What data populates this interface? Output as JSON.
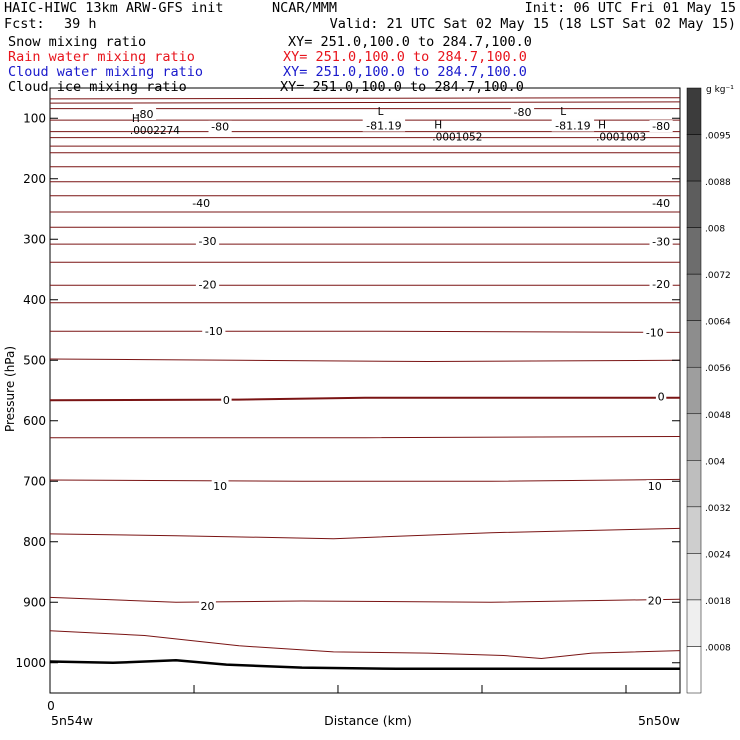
{
  "header": {
    "model": "HAIC-HIWC 13km ARW-GFS init",
    "center": "NCAR/MMM",
    "init": "Init: 06 UTC Fri 01 May 15",
    "fcst_label": "Fcst:",
    "fcst_value": "39 h",
    "valid": "Valid: 21 UTC Sat 02 May 15 (18 LST Sat 02 May 15)"
  },
  "fields": [
    {
      "label": "Snow mixing ratio",
      "xy": "XY= 251.0,100.0 to 284.7,100.0",
      "color": "#000000"
    },
    {
      "label": "Rain water mixing ratio",
      "xy": "XY= 251.0,100.0 to 284.7,100.0",
      "color": "#e8141c"
    },
    {
      "label": "Cloud water mixing ratio",
      "xy": "XY= 251.0,100.0 to 284.7,100.0",
      "color": "#1a1acc"
    },
    {
      "label": "Cloud ice mixing ratio",
      "xy": "XY= 251.0,100.0 to 284.7,100.0",
      "color": "#000000"
    }
  ],
  "colorbar": {
    "unit": "g kg⁻¹",
    "labels": [
      ".0095",
      ".0088",
      ".008",
      ".0072",
      ".0064",
      ".0056",
      ".0048",
      ".004",
      ".0032",
      ".0024",
      ".0018",
      ".0008"
    ]
  },
  "chart_data": {
    "type": "line",
    "title": "",
    "xlabel": "Distance (km)",
    "ylabel": "Pressure (hPa)",
    "x_start_label": "0",
    "x_left_label": "5n54w",
    "x_right_label": "5n50w",
    "ylim": [
      1050,
      50
    ],
    "yticks": [
      100,
      200,
      300,
      400,
      500,
      600,
      700,
      800,
      900,
      1000
    ],
    "temperature_contour_color": "#7a1414",
    "contour_line_labels": [
      {
        "label": "-80",
        "x": 0.15,
        "p": 93
      },
      {
        "label": "-80",
        "x": 0.27,
        "p": 114
      },
      {
        "label": "-80",
        "x": 0.75,
        "p": 90
      },
      {
        "label": "-81.19",
        "x": 0.53,
        "p": 112
      },
      {
        "label": "-81.19",
        "x": 0.83,
        "p": 112
      },
      {
        "label": "-80",
        "x": 0.97,
        "p": 113
      },
      {
        "label": "-40",
        "x": 0.24,
        "p": 240
      },
      {
        "label": "-40",
        "x": 0.97,
        "p": 240
      },
      {
        "label": "-30",
        "x": 0.25,
        "p": 303
      },
      {
        "label": "-30",
        "x": 0.97,
        "p": 304
      },
      {
        "label": "-20",
        "x": 0.25,
        "p": 375
      },
      {
        "label": "-20",
        "x": 0.97,
        "p": 374
      },
      {
        "label": "-10",
        "x": 0.26,
        "p": 452
      },
      {
        "label": "-10",
        "x": 0.96,
        "p": 454
      },
      {
        "label": "0",
        "x": 0.28,
        "p": 566
      },
      {
        "label": "0",
        "x": 0.97,
        "p": 560
      },
      {
        "label": "10",
        "x": 0.27,
        "p": 708
      },
      {
        "label": "10",
        "x": 0.96,
        "p": 708
      },
      {
        "label": "20",
        "x": 0.25,
        "p": 906
      },
      {
        "label": "20",
        "x": 0.96,
        "p": 897
      }
    ],
    "extrema_markers": [
      {
        "symbol": "H",
        "value": ".0002274",
        "x": 0.13,
        "p": 106
      },
      {
        "symbol": "H",
        "value": ".0001052",
        "x": 0.61,
        "p": 117
      },
      {
        "symbol": "H",
        "value": ".0001003",
        "x": 0.87,
        "p": 117
      },
      {
        "symbol": "L",
        "value": "",
        "x": 0.52,
        "p": 95
      },
      {
        "symbol": "L",
        "value": "",
        "x": 0.81,
        "p": 95
      }
    ],
    "temperature_contours": [
      {
        "x": [
          0,
          0.5,
          1
        ],
        "p": [
          68,
          67,
          66
        ]
      },
      {
        "x": [
          0,
          0.5,
          1
        ],
        "p": [
          75,
          74,
          73
        ]
      },
      {
        "x": [
          0,
          0.5,
          1
        ],
        "p": [
          84,
          84,
          84
        ]
      },
      {
        "x": [
          0,
          0.5,
          1
        ],
        "p": [
          103,
          103,
          103
        ]
      },
      {
        "x": [
          0,
          0.5,
          1
        ],
        "p": [
          122,
          122,
          122
        ]
      },
      {
        "x": [
          0,
          0.5,
          1
        ],
        "p": [
          132,
          132,
          132
        ]
      },
      {
        "x": [
          0,
          0.5,
          1
        ],
        "p": [
          146,
          146,
          146
        ]
      },
      {
        "x": [
          0,
          0.5,
          1
        ],
        "p": [
          157,
          157,
          157
        ]
      },
      {
        "x": [
          0,
          0.5,
          1
        ],
        "p": [
          180,
          180,
          180
        ]
      },
      {
        "x": [
          0,
          0.5,
          1
        ],
        "p": [
          205,
          205,
          205
        ]
      },
      {
        "x": [
          0,
          0.5,
          1
        ],
        "p": [
          228,
          228,
          228
        ]
      },
      {
        "x": [
          0,
          0.5,
          1
        ],
        "p": [
          255,
          255,
          255
        ]
      },
      {
        "x": [
          0,
          0.5,
          1
        ],
        "p": [
          280,
          280,
          280
        ]
      },
      {
        "x": [
          0,
          0.5,
          1
        ],
        "p": [
          308,
          308,
          308
        ]
      },
      {
        "x": [
          0,
          0.5,
          1
        ],
        "p": [
          338,
          338,
          338
        ]
      },
      {
        "x": [
          0,
          0.5,
          1
        ],
        "p": [
          376,
          376,
          376
        ]
      },
      {
        "x": [
          0,
          0.5,
          1
        ],
        "p": [
          405,
          405,
          405
        ]
      },
      {
        "x": [
          0,
          0.5,
          1
        ],
        "p": [
          452,
          452,
          454
        ]
      },
      {
        "x": [
          0,
          0.3,
          0.6,
          1
        ],
        "p": [
          498,
          500,
          502,
          500
        ]
      },
      {
        "x": [
          0,
          0.3,
          0.5,
          0.7,
          1
        ],
        "p": [
          566,
          565,
          562,
          562,
          562
        ],
        "width": 2
      },
      {
        "x": [
          0,
          0.5,
          1
        ],
        "p": [
          628,
          628,
          626
        ]
      },
      {
        "x": [
          0,
          0.4,
          0.7,
          1
        ],
        "p": [
          698,
          700,
          700,
          697
        ]
      },
      {
        "x": [
          0,
          0.2,
          0.45,
          0.7,
          1
        ],
        "p": [
          787,
          790,
          795,
          785,
          778
        ]
      },
      {
        "x": [
          0,
          0.2,
          0.4,
          0.7,
          1
        ],
        "p": [
          892,
          900,
          898,
          900,
          895
        ]
      },
      {
        "x": [
          0,
          0.15,
          0.3,
          0.45,
          0.6,
          0.72,
          0.78,
          0.86,
          1
        ],
        "p": [
          947,
          955,
          972,
          982,
          984,
          988,
          993,
          984,
          980
        ]
      }
    ],
    "terrain": {
      "x": [
        0,
        0.1,
        0.2,
        0.28,
        0.4,
        0.55,
        0.7,
        0.85,
        1
      ],
      "p": [
        998,
        1000,
        996,
        1003,
        1008,
        1010,
        1010,
        1010,
        1010
      ]
    }
  }
}
